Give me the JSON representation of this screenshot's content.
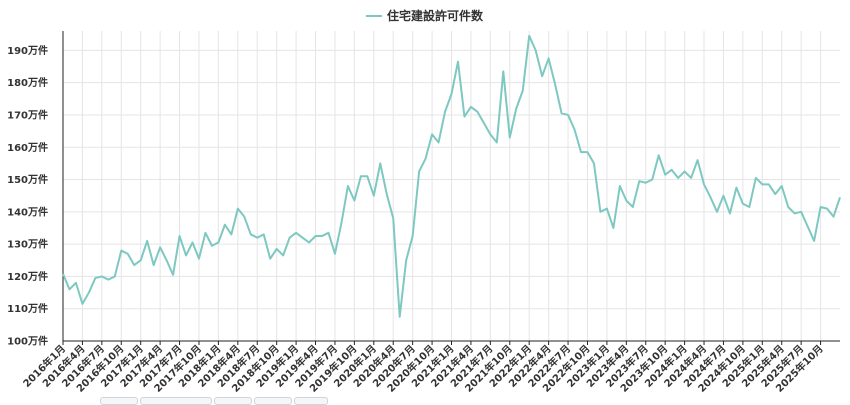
{
  "chart_data": {
    "type": "line",
    "title": "",
    "xlabel": "",
    "ylabel": "",
    "legend": {
      "position": "top-center",
      "entries": [
        "住宅建設許可件数"
      ]
    },
    "grid": true,
    "ylim": [
      100,
      196
    ],
    "yticks": [
      100,
      110,
      120,
      130,
      140,
      150,
      160,
      170,
      180,
      190
    ],
    "ytick_labels": [
      "100万件",
      "110万件",
      "120万件",
      "130万件",
      "140万件",
      "150万件",
      "160万件",
      "170万件",
      "180万件",
      "190万件"
    ],
    "x_tick_labels": [
      "2016年1月",
      "2016年4月",
      "2016年7月",
      "2016年10月",
      "2017年1月",
      "2017年4月",
      "2017年7月",
      "2017年10月",
      "2018年1月",
      "2018年4月",
      "2018年7月",
      "2018年10月",
      "2019年1月",
      "2019年4月",
      "2019年7月",
      "2019年10月",
      "2020年1月",
      "2020年4月",
      "2020年7月",
      "2020年10月",
      "2021年1月",
      "2021年4月",
      "2021年7月",
      "2021年10月",
      "2022年1月",
      "2022年4月",
      "2022年7月",
      "2022年10月",
      "2023年1月",
      "2023年4月",
      "2023年7月",
      "2023年10月",
      "2024年1月",
      "2024年4月",
      "2024年7月",
      "2024年10月",
      "2025年1月",
      "2025年4月",
      "2025年7月",
      "2025年10月"
    ],
    "x_start": "2016年1月",
    "series": [
      {
        "name": "住宅建設許可件数",
        "color": "#7ec8c2",
        "unit": "万件",
        "values": [
          120.8,
          116.0,
          118.0,
          111.5,
          115.0,
          119.5,
          120.0,
          119.0,
          120.0,
          128.0,
          127.0,
          123.5,
          125.0,
          131.0,
          123.5,
          129.0,
          125.0,
          120.5,
          132.5,
          126.5,
          130.5,
          125.5,
          133.5,
          129.5,
          130.5,
          136.0,
          133.0,
          141.0,
          138.5,
          133.0,
          132.0,
          133.0,
          125.5,
          128.5,
          126.5,
          132.0,
          133.5,
          132.0,
          130.5,
          132.5,
          132.5,
          133.5,
          127.0,
          136.5,
          148.0,
          143.5,
          151.0,
          151.0,
          145.0,
          155.0,
          145.5,
          138.0,
          107.5,
          125.0,
          132.5,
          152.5,
          156.5,
          164.0,
          161.5,
          171.0,
          176.5,
          186.5,
          169.5,
          172.5,
          171.0,
          167.5,
          164.0,
          161.5,
          183.5,
          163.0,
          172.0,
          177.5,
          194.5,
          190.0,
          182.0,
          187.5,
          179.5,
          170.5,
          170.0,
          165.5,
          158.5,
          158.5,
          155.0,
          140.0,
          141.0,
          135.0,
          148.0,
          143.5,
          141.5,
          149.5,
          149.0,
          150.0,
          157.5,
          151.5,
          153.0,
          150.5,
          152.5,
          150.5,
          156.0,
          148.5,
          144.5,
          140.0,
          145.0,
          139.5,
          147.5,
          142.5,
          141.5,
          150.5,
          148.5,
          148.5,
          145.5,
          148.0,
          141.5,
          139.5,
          140.0,
          135.5,
          131.0,
          141.5,
          141.0,
          138.5,
          144.5
        ]
      }
    ]
  }
}
